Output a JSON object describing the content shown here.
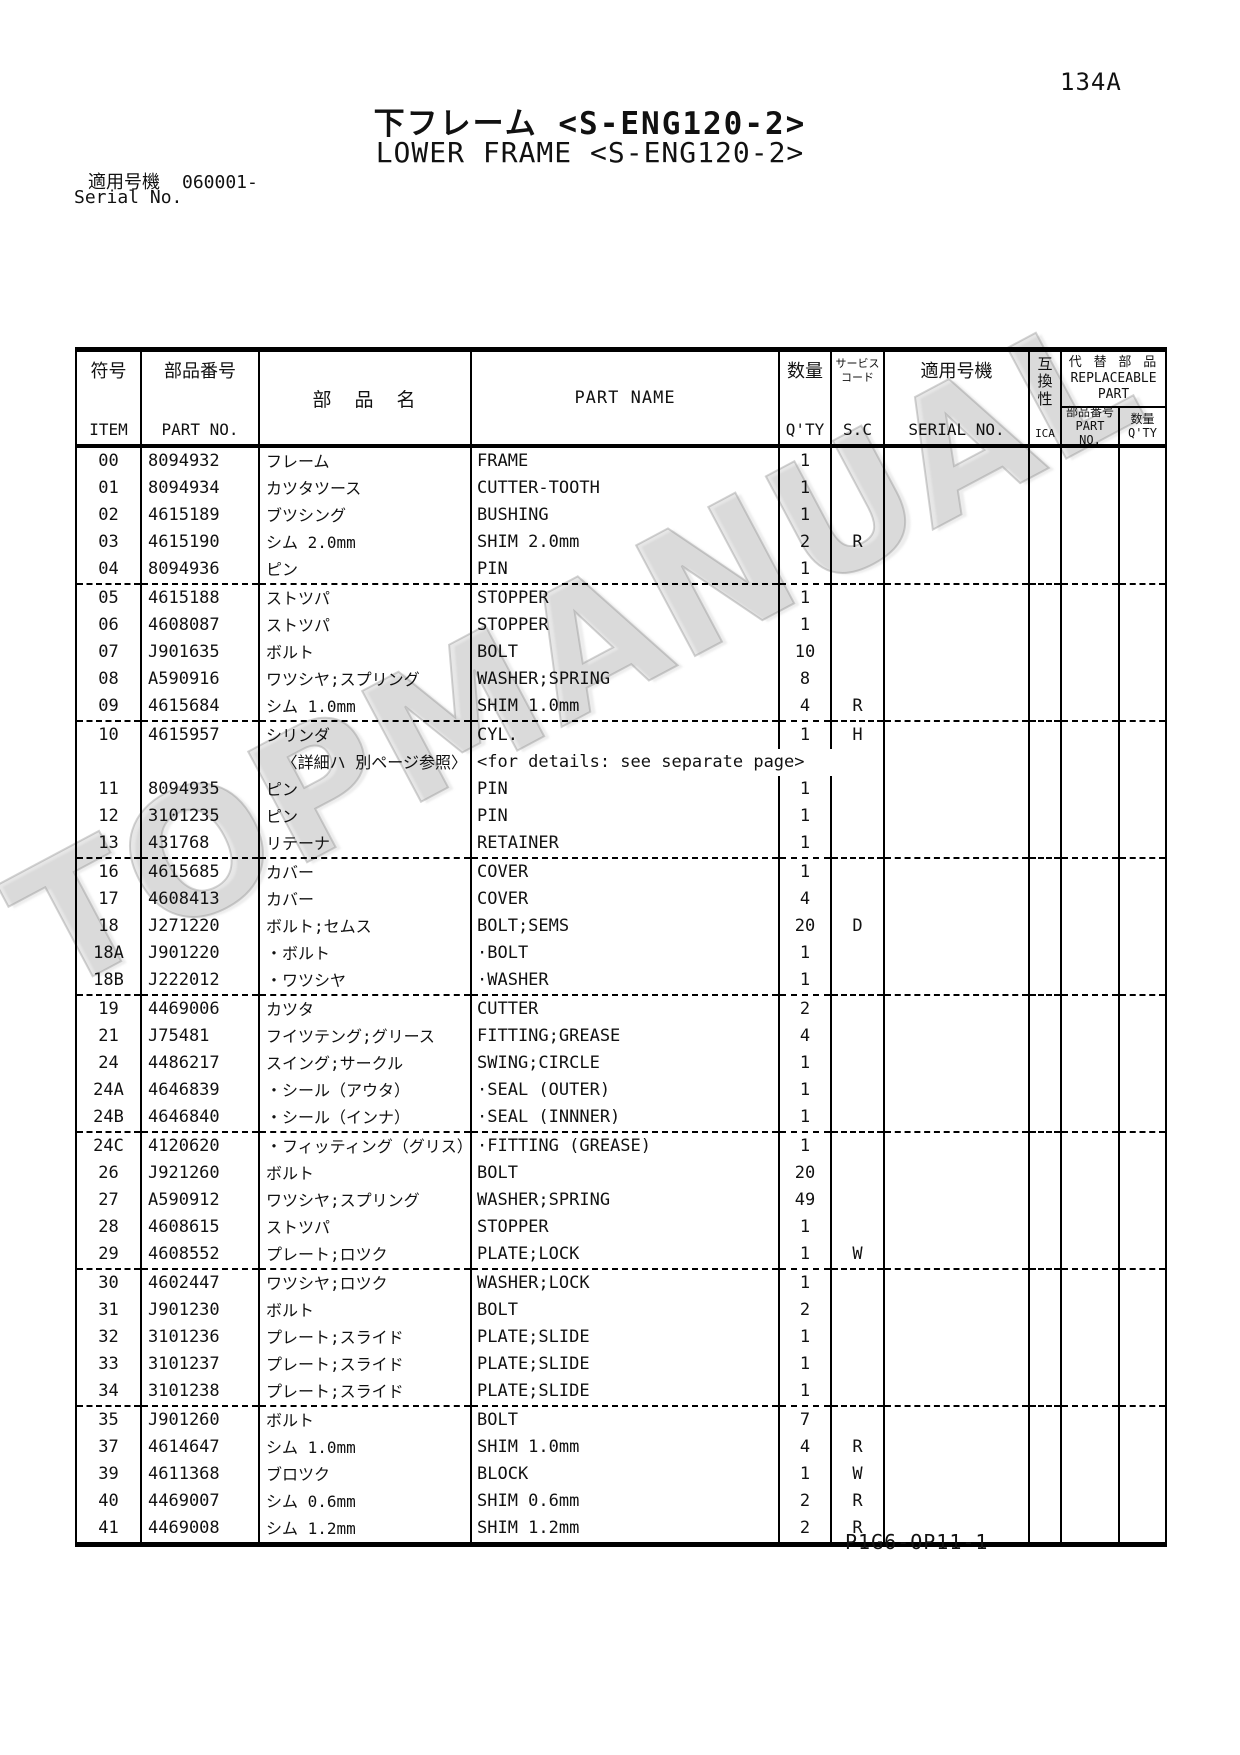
{
  "page": {
    "page_number": "134A",
    "title_jp": "下フレーム <S-ENG120-2>",
    "title_en": "LOWER FRAME <S-ENG120-2>",
    "serial_label_jp": "適用号機",
    "serial_value": "060001-",
    "serial_label_en": "Serial No.",
    "footer_code": "P1G6-OP11-1",
    "watermark": "TOPMANUAL"
  },
  "table": {
    "headers": {
      "item_jp": "符号",
      "item_en": "ITEM",
      "part_no_jp": "部品番号",
      "part_no_en": "PART NO.",
      "part_name_jp": "部　品　名",
      "part_name_en": "PART NAME",
      "qty_jp": "数量",
      "qty_en": "Q'TY",
      "sc_jp1": "サービス",
      "sc_jp2": "コード",
      "sc_en": "S.C",
      "serial_jp": "適用号機",
      "serial_en": "SERIAL NO.",
      "ica_jp": "互換性",
      "ica_en": "ICA",
      "repl_jp": "代 替 部 品",
      "repl_en1": "REPLACEABLE",
      "repl_en2": "PART",
      "repl_pn_jp": "部品番号",
      "repl_pn_en": "PART NO.",
      "repl_qty_jp": "数量",
      "repl_qty_en": "Q'TY"
    },
    "rows": [
      {
        "item": "00",
        "part_no": "8094932",
        "name_jp": "フレーム",
        "name_en": "FRAME",
        "qty": "1",
        "sc": "",
        "serial": "",
        "ica": "",
        "repl_pn": "",
        "repl_qty": ""
      },
      {
        "item": "01",
        "part_no": "8094934",
        "name_jp": "カツタツース",
        "name_en": "CUTTER-TOOTH",
        "qty": "1",
        "sc": "",
        "serial": "",
        "ica": "",
        "repl_pn": "",
        "repl_qty": ""
      },
      {
        "item": "02",
        "part_no": "4615189",
        "name_jp": "ブツシング",
        "name_en": "BUSHING",
        "qty": "1",
        "sc": "",
        "serial": "",
        "ica": "",
        "repl_pn": "",
        "repl_qty": ""
      },
      {
        "item": "03",
        "part_no": "4615190",
        "name_jp": "シム 2.0mm",
        "name_en": "SHIM 2.0mm",
        "qty": "2",
        "sc": "R",
        "serial": "",
        "ica": "",
        "repl_pn": "",
        "repl_qty": ""
      },
      {
        "item": "04",
        "part_no": "8094936",
        "name_jp": "ピン",
        "name_en": "PIN",
        "qty": "1",
        "sc": "",
        "serial": "",
        "ica": "",
        "repl_pn": "",
        "repl_qty": "",
        "divider": true
      },
      {
        "item": "05",
        "part_no": "4615188",
        "name_jp": "ストツパ",
        "name_en": "STOPPER",
        "qty": "1",
        "sc": "",
        "serial": "",
        "ica": "",
        "repl_pn": "",
        "repl_qty": ""
      },
      {
        "item": "06",
        "part_no": "4608087",
        "name_jp": "ストツパ",
        "name_en": "STOPPER",
        "qty": "1",
        "sc": "",
        "serial": "",
        "ica": "",
        "repl_pn": "",
        "repl_qty": ""
      },
      {
        "item": "07",
        "part_no": "J901635",
        "name_jp": "ボルト",
        "name_en": "BOLT",
        "qty": "10",
        "sc": "",
        "serial": "",
        "ica": "",
        "repl_pn": "",
        "repl_qty": ""
      },
      {
        "item": "08",
        "part_no": "A590916",
        "name_jp": "ワツシヤ;スプリング",
        "name_en": "WASHER;SPRING",
        "qty": "8",
        "sc": "",
        "serial": "",
        "ica": "",
        "repl_pn": "",
        "repl_qty": ""
      },
      {
        "item": "09",
        "part_no": "4615684",
        "name_jp": "シム 1.0mm",
        "name_en": "SHIM 1.0mm",
        "qty": "4",
        "sc": "R",
        "serial": "",
        "ica": "",
        "repl_pn": "",
        "repl_qty": "",
        "divider": true
      },
      {
        "item": "10",
        "part_no": "4615957",
        "name_jp": "シリンダ",
        "name_en": "CYL.",
        "qty": "1",
        "sc": "H",
        "serial": "",
        "ica": "",
        "repl_pn": "",
        "repl_qty": ""
      },
      {
        "type": "note",
        "note_jp": "〈詳細ハ 別ページ参照〉",
        "note_en": "<for details: see separate page>"
      },
      {
        "item": "11",
        "part_no": "8094935",
        "name_jp": "ピン",
        "name_en": "PIN",
        "qty": "1",
        "sc": "",
        "serial": "",
        "ica": "",
        "repl_pn": "",
        "repl_qty": ""
      },
      {
        "item": "12",
        "part_no": "3101235",
        "name_jp": "ピン",
        "name_en": "PIN",
        "qty": "1",
        "sc": "",
        "serial": "",
        "ica": "",
        "repl_pn": "",
        "repl_qty": ""
      },
      {
        "item": "13",
        "part_no": "431768",
        "name_jp": "リテーナ",
        "name_en": "RETAINER",
        "qty": "1",
        "sc": "",
        "serial": "",
        "ica": "",
        "repl_pn": "",
        "repl_qty": "",
        "divider": true
      },
      {
        "item": "16",
        "part_no": "4615685",
        "name_jp": "カバー",
        "name_en": "COVER",
        "qty": "1",
        "sc": "",
        "serial": "",
        "ica": "",
        "repl_pn": "",
        "repl_qty": ""
      },
      {
        "item": "17",
        "part_no": "4608413",
        "name_jp": "カバー",
        "name_en": "COVER",
        "qty": "4",
        "sc": "",
        "serial": "",
        "ica": "",
        "repl_pn": "",
        "repl_qty": ""
      },
      {
        "item": "18",
        "part_no": "J271220",
        "name_jp": "ボルト;セムス",
        "name_en": "BOLT;SEMS",
        "qty": "20",
        "sc": "D",
        "serial": "",
        "ica": "",
        "repl_pn": "",
        "repl_qty": ""
      },
      {
        "item": "18A",
        "part_no": "J901220",
        "name_jp": "・ボルト",
        "name_en": "·BOLT",
        "qty": "1",
        "sc": "",
        "serial": "",
        "ica": "",
        "repl_pn": "",
        "repl_qty": ""
      },
      {
        "item": "18B",
        "part_no": "J222012",
        "name_jp": "・ワツシヤ",
        "name_en": "·WASHER",
        "qty": "1",
        "sc": "",
        "serial": "",
        "ica": "",
        "repl_pn": "",
        "repl_qty": "",
        "divider": true
      },
      {
        "item": "19",
        "part_no": "4469006",
        "name_jp": "カツタ",
        "name_en": "CUTTER",
        "qty": "2",
        "sc": "",
        "serial": "",
        "ica": "",
        "repl_pn": "",
        "repl_qty": ""
      },
      {
        "item": "21",
        "part_no": "J75481",
        "name_jp": "フイツテング;グリース",
        "name_en": "FITTING;GREASE",
        "qty": "4",
        "sc": "",
        "serial": "",
        "ica": "",
        "repl_pn": "",
        "repl_qty": ""
      },
      {
        "item": "24",
        "part_no": "4486217",
        "name_jp": "スイング;サークル",
        "name_en": "SWING;CIRCLE",
        "qty": "1",
        "sc": "",
        "serial": "",
        "ica": "",
        "repl_pn": "",
        "repl_qty": ""
      },
      {
        "item": "24A",
        "part_no": "4646839",
        "name_jp": "・シール（アウタ）",
        "name_en": "·SEAL (OUTER)",
        "qty": "1",
        "sc": "",
        "serial": "",
        "ica": "",
        "repl_pn": "",
        "repl_qty": ""
      },
      {
        "item": "24B",
        "part_no": "4646840",
        "name_jp": "・シール（インナ）",
        "name_en": "·SEAL (INNNER)",
        "qty": "1",
        "sc": "",
        "serial": "",
        "ica": "",
        "repl_pn": "",
        "repl_qty": "",
        "divider": true
      },
      {
        "item": "24C",
        "part_no": "4120620",
        "name_jp": "・フィッティング（グリス）",
        "name_en": "·FITTING (GREASE)",
        "qty": "1",
        "sc": "",
        "serial": "",
        "ica": "",
        "repl_pn": "",
        "repl_qty": ""
      },
      {
        "item": "26",
        "part_no": "J921260",
        "name_jp": "ボルト",
        "name_en": "BOLT",
        "qty": "20",
        "sc": "",
        "serial": "",
        "ica": "",
        "repl_pn": "",
        "repl_qty": ""
      },
      {
        "item": "27",
        "part_no": "A590912",
        "name_jp": "ワツシヤ;スプリング",
        "name_en": "WASHER;SPRING",
        "qty": "49",
        "sc": "",
        "serial": "",
        "ica": "",
        "repl_pn": "",
        "repl_qty": ""
      },
      {
        "item": "28",
        "part_no": "4608615",
        "name_jp": "ストツパ",
        "name_en": "STOPPER",
        "qty": "1",
        "sc": "",
        "serial": "",
        "ica": "",
        "repl_pn": "",
        "repl_qty": ""
      },
      {
        "item": "29",
        "part_no": "4608552",
        "name_jp": "プレート;ロツク",
        "name_en": "PLATE;LOCK",
        "qty": "1",
        "sc": "W",
        "serial": "",
        "ica": "",
        "repl_pn": "",
        "repl_qty": "",
        "divider": true
      },
      {
        "item": "30",
        "part_no": "4602447",
        "name_jp": "ワツシヤ;ロツク",
        "name_en": "WASHER;LOCK",
        "qty": "1",
        "sc": "",
        "serial": "",
        "ica": "",
        "repl_pn": "",
        "repl_qty": ""
      },
      {
        "item": "31",
        "part_no": "J901230",
        "name_jp": "ボルト",
        "name_en": "BOLT",
        "qty": "2",
        "sc": "",
        "serial": "",
        "ica": "",
        "repl_pn": "",
        "repl_qty": ""
      },
      {
        "item": "32",
        "part_no": "3101236",
        "name_jp": "プレート;スライド",
        "name_en": "PLATE;SLIDE",
        "qty": "1",
        "sc": "",
        "serial": "",
        "ica": "",
        "repl_pn": "",
        "repl_qty": ""
      },
      {
        "item": "33",
        "part_no": "3101237",
        "name_jp": "プレート;スライド",
        "name_en": "PLATE;SLIDE",
        "qty": "1",
        "sc": "",
        "serial": "",
        "ica": "",
        "repl_pn": "",
        "repl_qty": ""
      },
      {
        "item": "34",
        "part_no": "3101238",
        "name_jp": "プレート;スライド",
        "name_en": "PLATE;SLIDE",
        "qty": "1",
        "sc": "",
        "serial": "",
        "ica": "",
        "repl_pn": "",
        "repl_qty": "",
        "divider": true
      },
      {
        "item": "35",
        "part_no": "J901260",
        "name_jp": "ボルト",
        "name_en": "BOLT",
        "qty": "7",
        "sc": "",
        "serial": "",
        "ica": "",
        "repl_pn": "",
        "repl_qty": ""
      },
      {
        "item": "37",
        "part_no": "4614647",
        "name_jp": "シム 1.0mm",
        "name_en": "SHIM 1.0mm",
        "qty": "4",
        "sc": "R",
        "serial": "",
        "ica": "",
        "repl_pn": "",
        "repl_qty": ""
      },
      {
        "item": "39",
        "part_no": "4611368",
        "name_jp": "ブロツク",
        "name_en": "BLOCK",
        "qty": "1",
        "sc": "W",
        "serial": "",
        "ica": "",
        "repl_pn": "",
        "repl_qty": ""
      },
      {
        "item": "40",
        "part_no": "4469007",
        "name_jp": "シム 0.6mm",
        "name_en": "SHIM 0.6mm",
        "qty": "2",
        "sc": "R",
        "serial": "",
        "ica": "",
        "repl_pn": "",
        "repl_qty": ""
      },
      {
        "item": "41",
        "part_no": "4469008",
        "name_jp": "シム 1.2mm",
        "name_en": "SHIM 1.2mm",
        "qty": "2",
        "sc": "R",
        "serial": "",
        "ica": "",
        "repl_pn": "",
        "repl_qty": ""
      }
    ]
  }
}
